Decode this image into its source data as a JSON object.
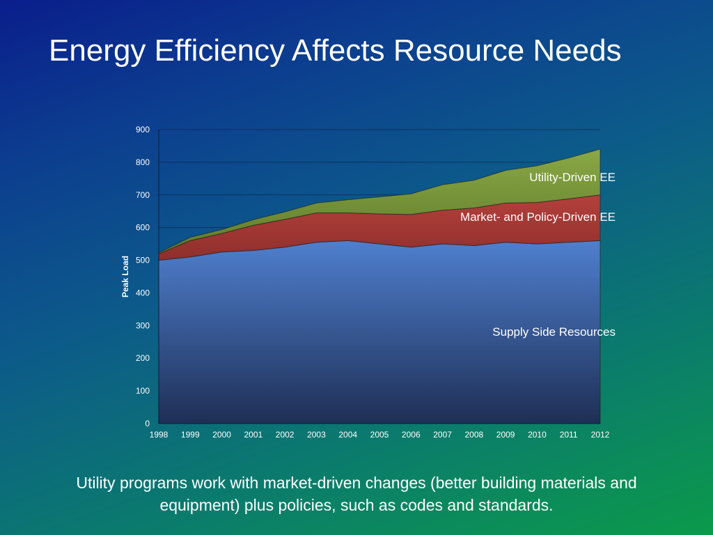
{
  "slide": {
    "title": "Energy Efficiency Affects Resource Needs",
    "caption": "Utility programs work with market-driven changes (better building materials and equipment) plus policies, such as codes and standards."
  },
  "chart_data": {
    "type": "area",
    "stacked": true,
    "title": "",
    "xlabel": "",
    "ylabel": "Peak Load",
    "x": [
      "1998",
      "1999",
      "2000",
      "2001",
      "2002",
      "2003",
      "2004",
      "2005",
      "2006",
      "2007",
      "2008",
      "2009",
      "2010",
      "2011",
      "2012"
    ],
    "ylim": [
      0,
      900
    ],
    "yticks": [
      0,
      100,
      200,
      300,
      400,
      500,
      600,
      700,
      800,
      900
    ],
    "grid": true,
    "legend": "none",
    "series": [
      {
        "name": "Supply Side Resources",
        "color": "#4f7fce",
        "values": [
          500,
          510,
          525,
          530,
          540,
          555,
          560,
          550,
          540,
          550,
          545,
          555,
          550,
          555,
          560
        ]
      },
      {
        "name": "Market- and Policy-Driven EE",
        "color": "#a53a38",
        "values": [
          20,
          50,
          57,
          77,
          85,
          90,
          85,
          92,
          100,
          103,
          115,
          120,
          127,
          133,
          140
        ]
      },
      {
        "name": "Utility-Driven EE",
        "color": "#77923a",
        "values": [
          3,
          10,
          12,
          17,
          23,
          30,
          40,
          52,
          63,
          78,
          85,
          100,
          112,
          125,
          140
        ]
      }
    ]
  }
}
